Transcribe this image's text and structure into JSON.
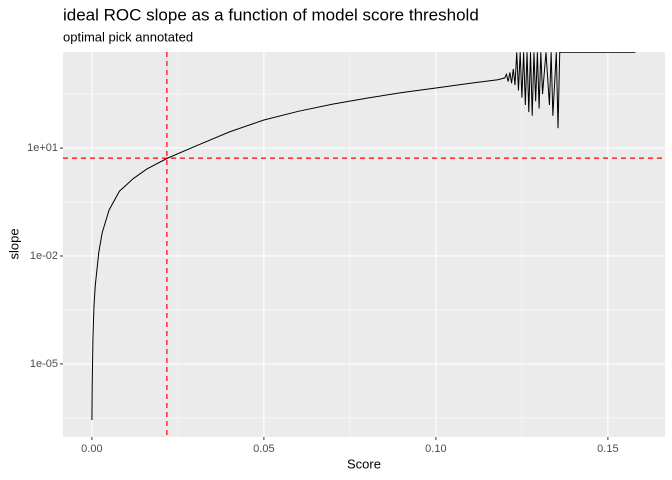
{
  "chart_data": {
    "type": "line",
    "title": "ideal ROC slope as a function of model score threshold",
    "subtitle": "optimal pick annotated",
    "x_label": "Score",
    "y_label": "slope",
    "log_y": true,
    "grid": true,
    "xlim": [
      -0.0084,
      0.1666
    ],
    "ylim": [
      9.3e-08,
      4677
    ],
    "xticks": [
      {
        "value": 0,
        "label": "0.00"
      },
      0.05,
      {
        "value": 0.1,
        "label": "0.10"
      },
      0.15
    ],
    "x_minor_ticks": [
      0.025,
      0.075,
      0.125
    ],
    "yticks": [
      {
        "value": 1e-05,
        "label": "1e-05"
      },
      {
        "value": 0.01,
        "label": "1e-02"
      },
      {
        "value": 10,
        "label": "1e+01"
      }
    ],
    "y_minor_ticks": [
      3.162e-07,
      0.0003162,
      0.3162,
      316.2
    ],
    "vline": 0.0218,
    "hline": 5.25,
    "annotation_color": "#ff0000",
    "series": [
      {
        "color": "#000000",
        "x": [
          0,
          0.0001,
          0.0003,
          0.0006,
          0.001,
          0.002,
          0.003,
          0.005,
          0.008,
          0.012,
          0.016,
          0.022,
          0.03,
          0.04,
          0.05,
          0.06,
          0.07,
          0.08,
          0.09,
          0.1,
          0.11,
          0.118,
          0.12,
          0.1205,
          0.121,
          0.1215,
          0.122,
          0.1225,
          0.123,
          0.1235,
          0.124,
          0.1245,
          0.125,
          0.1255,
          0.126,
          0.1265,
          0.127,
          0.1275,
          0.128,
          0.1285,
          0.129,
          0.1295,
          0.13,
          0.1305,
          0.131,
          0.132,
          0.133,
          0.1335,
          0.134,
          0.135,
          0.1355,
          0.136,
          0.158
        ],
        "values": [
          2.75e-07,
          3.16e-06,
          5e-05,
          0.0004,
          0.00158,
          0.0126,
          0.0447,
          0.19,
          0.63,
          1.41,
          2.63,
          5.25,
          11.2,
          28.2,
          60.3,
          105,
          166,
          245,
          347,
          468,
          631,
          794,
          891,
          1122,
          708,
          1259,
          631,
          1585,
          562,
          4600,
          398,
          4600,
          251,
          4600,
          158,
          4600,
          100,
          4600,
          79,
          4600,
          200,
          4600,
          126,
          4600,
          316,
          4600,
          158,
          4600,
          79,
          4600,
          35.5,
          4600,
          4600
        ]
      }
    ]
  }
}
